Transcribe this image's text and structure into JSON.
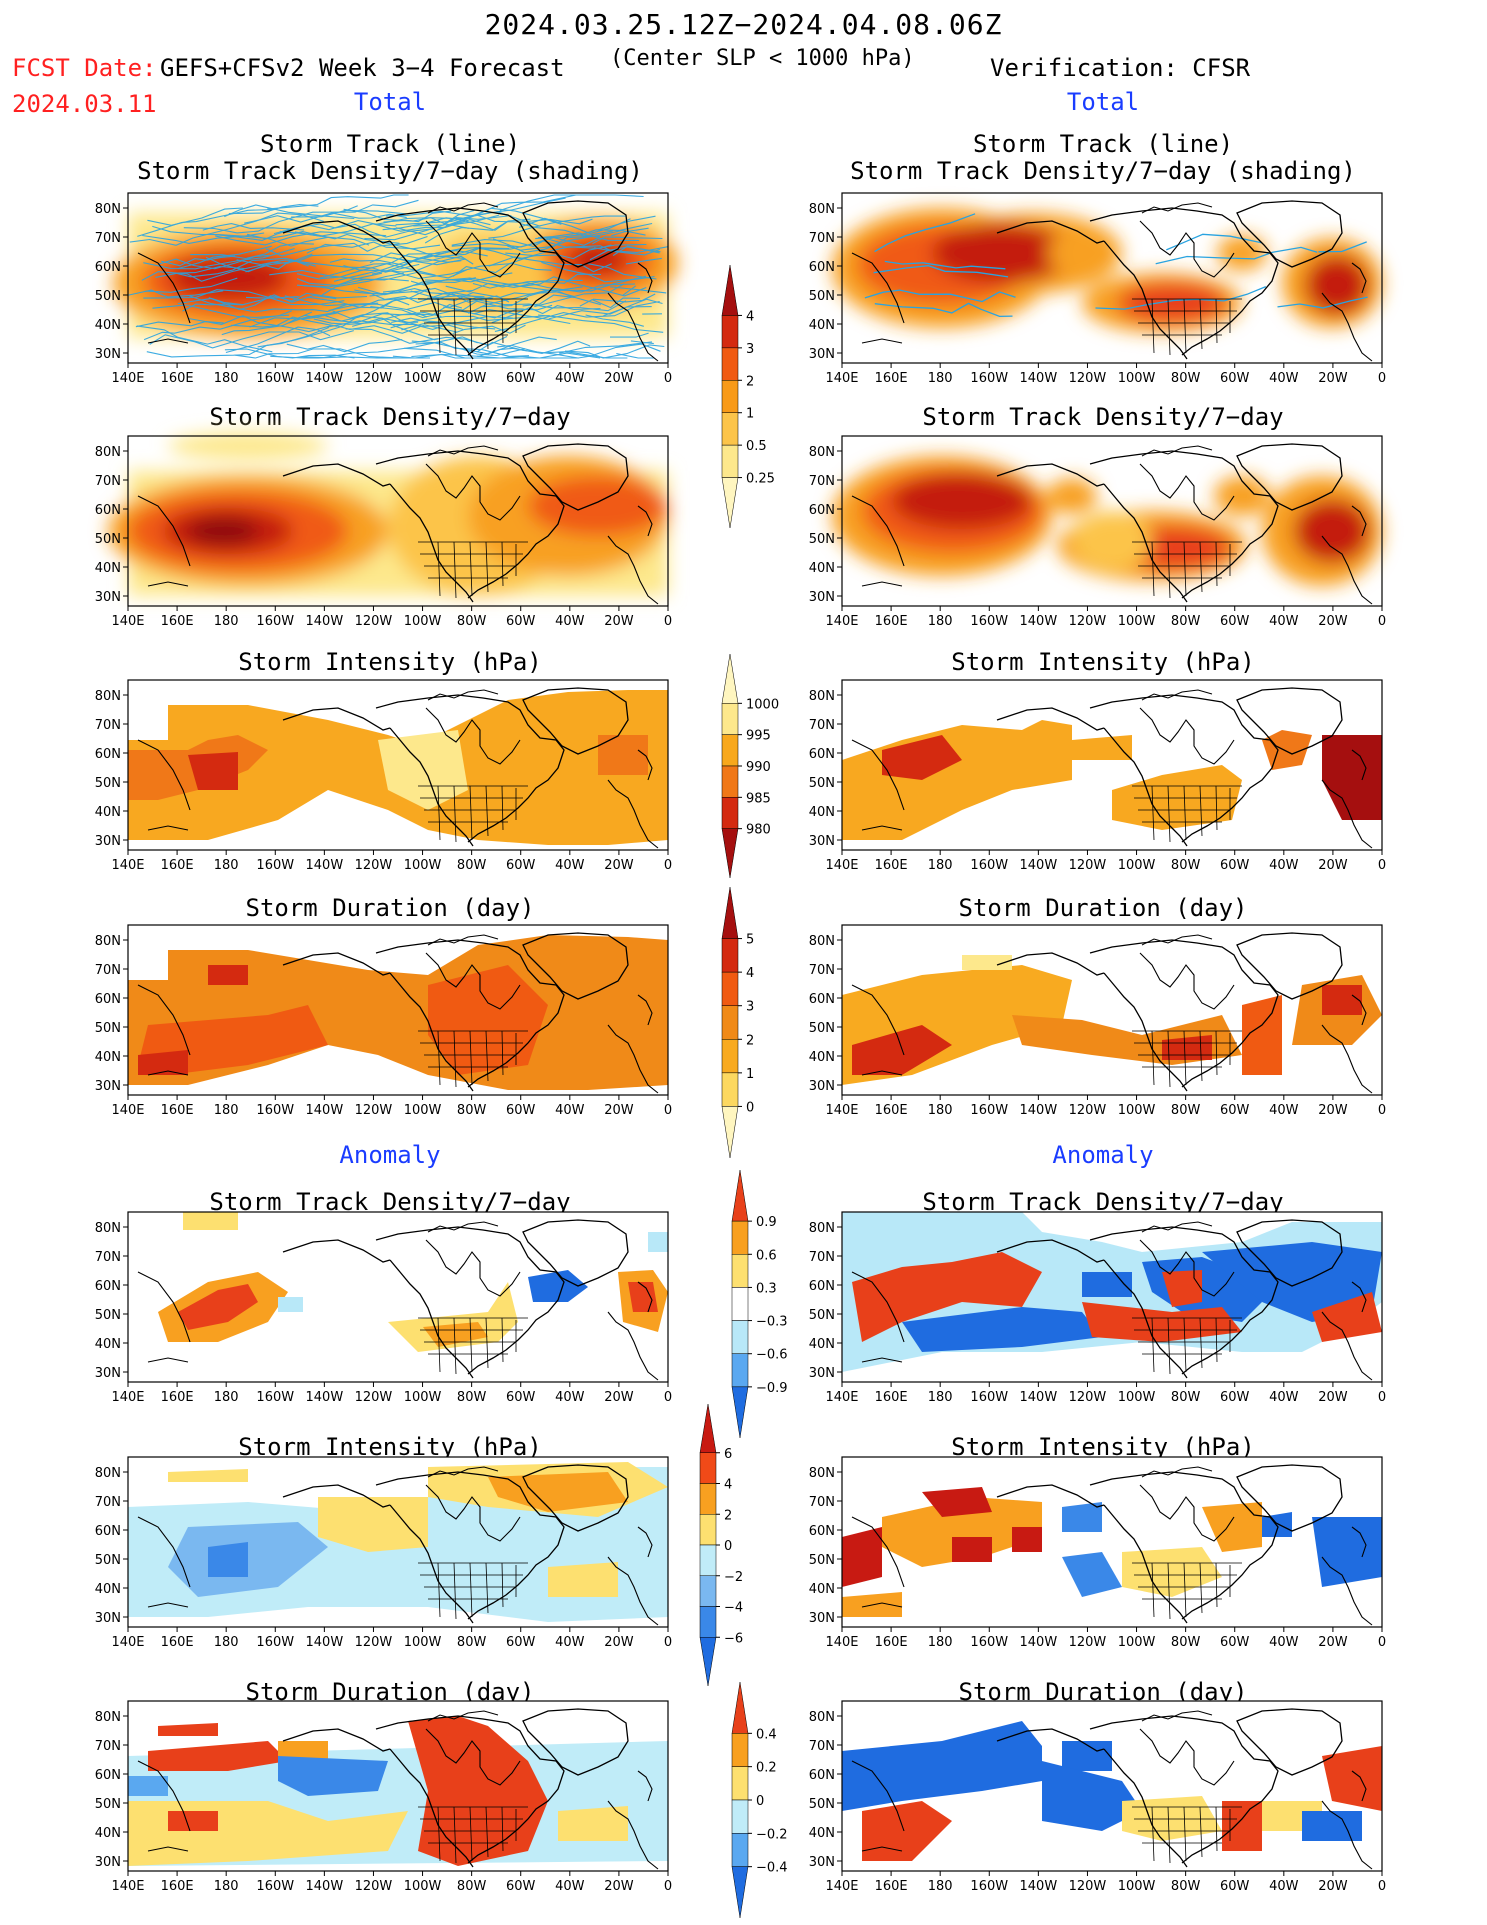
{
  "header": {
    "period": "2024.03.25.12Z−2024.04.08.06Z",
    "fcst_label": "FCST Date:",
    "fcst_date": "2024.03.11",
    "model": "GEFS+CFSv2 Week 3−4 Forecast",
    "criterion": "(Center SLP < 1000 hPa)",
    "verification": "Verification: CFSR"
  },
  "sections": {
    "total_left": "Total",
    "total_right": "Total",
    "anomaly_left": "Anomaly",
    "anomaly_right": "Anomaly"
  },
  "panel_titles": {
    "track_line": "Storm Track (line)",
    "track_shading": "Storm Track Density/7−day (shading)",
    "density": "Storm Track Density/7−day",
    "intensity": "Storm Intensity (hPa)",
    "duration": "Storm Duration (day)"
  },
  "map_axes": {
    "lat_labels": [
      "80N",
      "70N",
      "60N",
      "50N",
      "40N",
      "30N"
    ],
    "lon_labels": [
      "140E",
      "160E",
      "180",
      "160W",
      "140W",
      "120W",
      "100W",
      "80W",
      "60W",
      "40W",
      "20W",
      "0"
    ]
  },
  "colorbars": {
    "density_total": {
      "labels": [
        "4",
        "3",
        "2",
        "1",
        "0.5",
        "0.25"
      ],
      "colors": [
        "#a50f0f",
        "#d42a10",
        "#f05a12",
        "#f89a18",
        "#fcc44a",
        "#fde88c",
        "#fff6c0"
      ]
    },
    "intensity_total": {
      "labels": [
        "1000",
        "995",
        "990",
        "985",
        "980"
      ],
      "colors": [
        "#fff6c0",
        "#fde88c",
        "#f8a81c",
        "#f07818",
        "#d42a10",
        "#a50f0f"
      ]
    },
    "duration_total": {
      "labels": [
        "5",
        "4",
        "3",
        "2",
        "1",
        "0"
      ],
      "colors": [
        "#a50f0f",
        "#d42a10",
        "#f05a12",
        "#f08a18",
        "#f8aa20",
        "#fcd860",
        "#fff6c0"
      ]
    },
    "density_anom": {
      "labels": [
        "0.9",
        "0.6",
        "0.3",
        "−0.3",
        "−0.6",
        "−0.9"
      ],
      "colors": [
        "#e8401a",
        "#f8a020",
        "#fde070",
        "#ffffff",
        "#b8e8f8",
        "#5aa8f0",
        "#1f6ce0"
      ]
    },
    "intensity_anom": {
      "labels": [
        "6",
        "4",
        "2",
        "0",
        "−2",
        "−4",
        "−6"
      ],
      "colors": [
        "#c81a12",
        "#f04a18",
        "#f8a020",
        "#fde070",
        "#c0ecf8",
        "#7ab8f0",
        "#3a88e8",
        "#1f6ce0"
      ]
    },
    "duration_anom": {
      "labels": [
        "0.4",
        "0.2",
        "0",
        "−0.2",
        "−0.4"
      ],
      "colors": [
        "#e8401a",
        "#f8a020",
        "#fde070",
        "#c0ecf8",
        "#5aa8f0",
        "#1f6ce0"
      ]
    }
  },
  "colors": {
    "red_text": "#ff2020",
    "blue_text": "#1a3cff",
    "track_line": "#29a3e0"
  }
}
